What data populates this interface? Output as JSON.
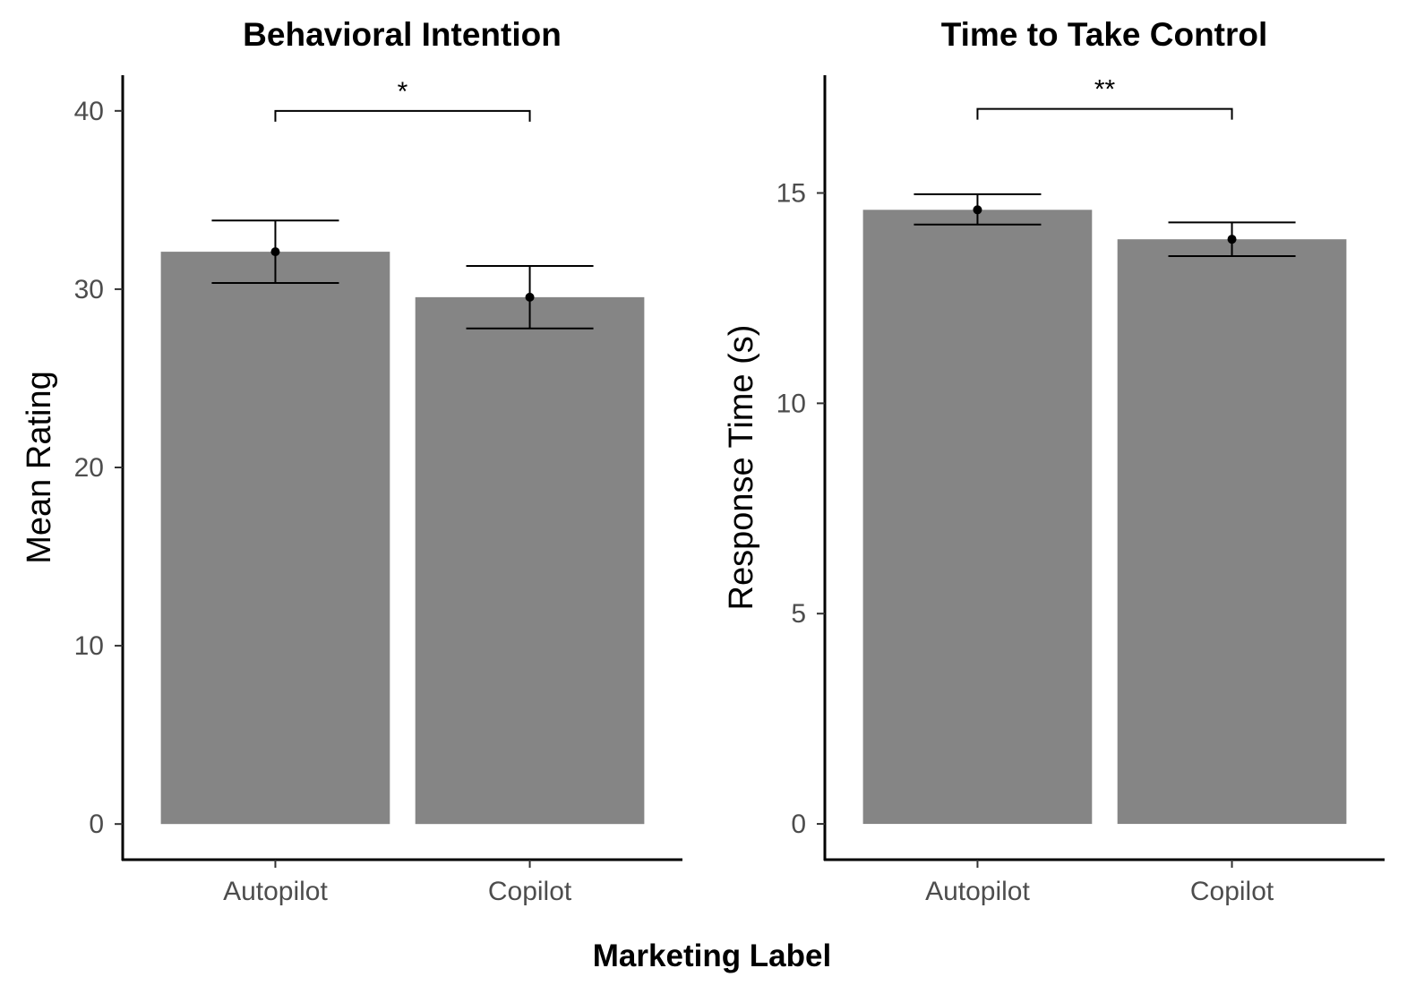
{
  "figure": {
    "shared_xlabel": "Marketing Label"
  },
  "chart_data": [
    {
      "type": "bar",
      "title": "Behavioral Intention",
      "xlabel": "",
      "ylabel": "Mean Rating",
      "categories": [
        "Autopilot",
        "Copilot"
      ],
      "values": [
        32.1,
        29.55
      ],
      "error_low": [
        30.35,
        27.8
      ],
      "error_high": [
        33.85,
        31.3
      ],
      "ylim": [
        -2,
        42
      ],
      "yticks": [
        0,
        10,
        20,
        30,
        40
      ],
      "bar_color": "#858585",
      "significance": {
        "from": "Autopilot",
        "to": "Copilot",
        "label": "*",
        "y": 40
      },
      "grid": false,
      "legend": "none"
    },
    {
      "type": "bar",
      "title": "Time to Take Control",
      "xlabel": "",
      "ylabel": "Response Time (s)",
      "categories": [
        "Autopilot",
        "Copilot"
      ],
      "values": [
        14.6,
        13.9
      ],
      "error_low": [
        14.25,
        13.5
      ],
      "error_high": [
        14.97,
        14.3
      ],
      "ylim": [
        -0.85,
        17.8
      ],
      "yticks": [
        0,
        5,
        10,
        15
      ],
      "bar_color": "#858585",
      "significance": {
        "from": "Autopilot",
        "to": "Copilot",
        "label": "**",
        "y": 17
      },
      "grid": false,
      "legend": "none"
    }
  ]
}
